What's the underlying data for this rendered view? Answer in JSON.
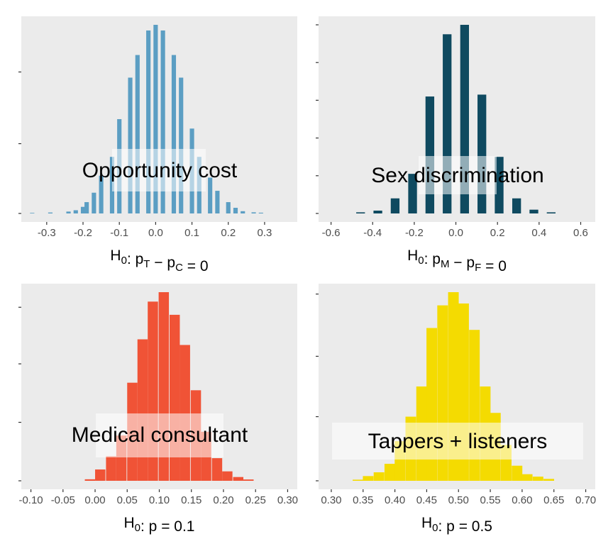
{
  "chart_data": [
    {
      "type": "bar",
      "id": "opportunity",
      "label": "Opportunity cost",
      "color": "#5b9ec3",
      "xlabel_parts": [
        [
          "H",
          ""
        ],
        [
          "0",
          "sub"
        ],
        [
          ":  p",
          ""
        ],
        [
          "T",
          "sub"
        ],
        [
          " − p",
          ""
        ],
        [
          "C",
          "sub"
        ],
        [
          " = 0",
          ""
        ]
      ],
      "xlim": [
        -0.37,
        0.39
      ],
      "ylim": [
        0,
        1
      ],
      "xticks": [
        -0.3,
        -0.2,
        -0.1,
        0.0,
        0.1,
        0.2,
        0.3
      ],
      "xtick_labels": [
        "-0.3",
        "-0.2",
        "-0.1",
        "0.0",
        "0.1",
        "0.2",
        "0.3"
      ],
      "yticks": [
        0.0,
        0.37,
        0.75
      ],
      "bar_width": 0.012,
      "x": [
        -0.34,
        -0.29,
        -0.24,
        -0.22,
        -0.2,
        -0.19,
        -0.17,
        -0.15,
        -0.12,
        -0.1,
        -0.07,
        -0.05,
        -0.02,
        0.0,
        0.02,
        0.05,
        0.07,
        0.1,
        0.12,
        0.15,
        0.17,
        0.2,
        0.22,
        0.24,
        0.27,
        0.29
      ],
      "values": [
        0.003,
        0.005,
        0.01,
        0.017,
        0.035,
        0.06,
        0.11,
        0.2,
        0.3,
        0.5,
        0.72,
        0.84,
        0.97,
        1.0,
        0.97,
        0.84,
        0.72,
        0.45,
        0.3,
        0.19,
        0.12,
        0.06,
        0.03,
        0.012,
        0.006,
        0.004
      ]
    },
    {
      "type": "bar",
      "id": "sex",
      "label": "Sex discrimination",
      "color": "#0f4a60",
      "xlabel_parts": [
        [
          "H",
          ""
        ],
        [
          "0",
          "sub"
        ],
        [
          ":  p",
          ""
        ],
        [
          "M",
          "sub"
        ],
        [
          " − p",
          ""
        ],
        [
          "F",
          "sub"
        ],
        [
          " = 0",
          ""
        ]
      ],
      "xlim": [
        -0.66,
        0.67
      ],
      "ylim": [
        0,
        1
      ],
      "xticks": [
        -0.6,
        -0.4,
        -0.2,
        0.0,
        0.2,
        0.4,
        0.6
      ],
      "xtick_labels": [
        "-0.6",
        "-0.4",
        "-0.2",
        "0.0",
        "0.2",
        "0.4",
        "0.6"
      ],
      "yticks": [
        0.0,
        0.2,
        0.4,
        0.6,
        0.8,
        1.0
      ],
      "bar_width": 0.042,
      "x": [
        -0.458,
        -0.375,
        -0.292,
        -0.208,
        -0.125,
        -0.042,
        0.042,
        0.125,
        0.208,
        0.292,
        0.375,
        0.458
      ],
      "values": [
        0.006,
        0.015,
        0.08,
        0.21,
        0.62,
        0.95,
        1.0,
        0.63,
        0.3,
        0.08,
        0.02,
        0.006
      ]
    },
    {
      "type": "bar",
      "id": "medical",
      "label": "Medical consultant",
      "color": "#f05336",
      "xlabel_parts": [
        [
          "H",
          ""
        ],
        [
          "0",
          "sub"
        ],
        [
          ":  p = 0.1",
          ""
        ]
      ],
      "xlim": [
        -0.115,
        0.315
      ],
      "ylim": [
        0,
        1
      ],
      "xticks": [
        -0.1,
        -0.05,
        0.0,
        0.05,
        0.1,
        0.15,
        0.2,
        0.25,
        0.3
      ],
      "xtick_labels": [
        "-0.10",
        "-0.05",
        "0.00",
        "0.05",
        "0.10",
        "0.15",
        "0.20",
        "0.25",
        "0.30"
      ],
      "yticks": [
        0.0,
        0.31,
        0.62,
        0.92
      ],
      "bar_width": 0.016,
      "x": [
        -0.008,
        0.008,
        0.025,
        0.041,
        0.058,
        0.074,
        0.09,
        0.107,
        0.124,
        0.14,
        0.157,
        0.173,
        0.19,
        0.206,
        0.223,
        0.239
      ],
      "values": [
        0.008,
        0.06,
        0.13,
        0.24,
        0.52,
        0.75,
        0.95,
        1.0,
        0.88,
        0.72,
        0.48,
        0.26,
        0.12,
        0.05,
        0.02,
        0.007
      ]
    },
    {
      "type": "bar",
      "id": "tappers",
      "label": "Tappers + listeners",
      "color": "#f4db01",
      "xlabel_parts": [
        [
          "H",
          ""
        ],
        [
          "0",
          "sub"
        ],
        [
          ":  p = 0.5",
          ""
        ]
      ],
      "xlim": [
        0.28,
        0.715
      ],
      "ylim": [
        0,
        1
      ],
      "xticks": [
        0.3,
        0.35,
        0.4,
        0.45,
        0.5,
        0.55,
        0.6,
        0.65,
        0.7
      ],
      "xtick_labels": [
        "0.30",
        "0.35",
        "0.40",
        "0.45",
        "0.50",
        "0.55",
        "0.60",
        "0.65",
        "0.70"
      ],
      "yticks": [
        0.0,
        0.34,
        0.66,
        0.99
      ],
      "bar_width": 0.0167,
      "x": [
        0.342,
        0.358,
        0.375,
        0.392,
        0.408,
        0.425,
        0.442,
        0.458,
        0.475,
        0.492,
        0.508,
        0.525,
        0.542,
        0.558,
        0.575,
        0.592,
        0.608,
        0.625,
        0.642
      ],
      "values": [
        0.006,
        0.025,
        0.045,
        0.09,
        0.21,
        0.34,
        0.5,
        0.81,
        0.93,
        1.0,
        0.94,
        0.8,
        0.5,
        0.36,
        0.19,
        0.08,
        0.035,
        0.022,
        0.01
      ]
    }
  ]
}
